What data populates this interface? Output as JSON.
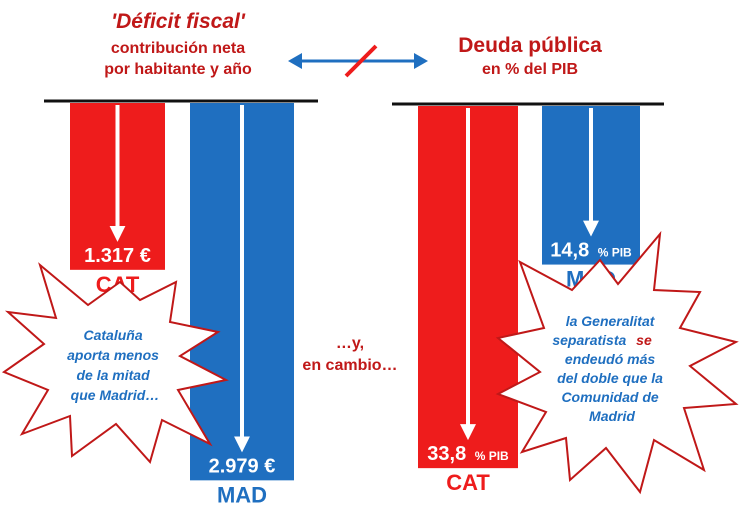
{
  "colors": {
    "red": "#ee1c1c",
    "blue": "#1f6fc0",
    "dark_red": "#c01818",
    "line": "#111111"
  },
  "chart_data": [
    {
      "type": "bar",
      "title": "'Déficit fiscal'",
      "subtitle_line1": "contribución neta",
      "subtitle_line2": "por habitante y año",
      "categories": [
        "CAT",
        "MAD"
      ],
      "values": [
        1317,
        2979
      ],
      "value_labels": [
        "1.317 €",
        "2.979 €"
      ],
      "unit": "€",
      "ylim": [
        0,
        3000
      ],
      "orientation": "downward"
    },
    {
      "type": "bar",
      "title": "Deuda pública",
      "subtitle_line1": "en % del PIB",
      "categories": [
        "CAT",
        "MAD"
      ],
      "values": [
        33.8,
        14.8
      ],
      "value_labels": [
        "33,8",
        "14,8"
      ],
      "unit": "% PIB",
      "ylim": [
        0,
        35
      ],
      "orientation": "downward"
    }
  ],
  "middle_text_line1": "…y,",
  "middle_text_line2": "en cambio…",
  "callout_left": [
    "Cataluña",
    "aporta menos",
    "de la mitad",
    "que Madrid…"
  ],
  "callout_right": [
    "la Generalitat",
    "separatista",
    "se",
    "endeudó más",
    "del doble que la",
    "Comunidad de",
    "Madrid"
  ]
}
